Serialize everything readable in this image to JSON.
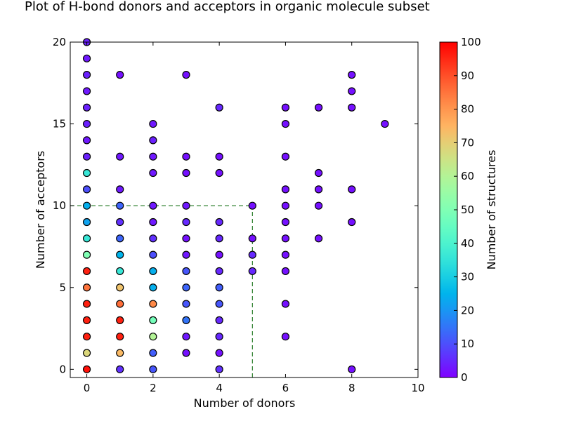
{
  "chart_data": {
    "type": "scatter",
    "title": "Plot of H-bond donors and acceptors in organic molecule subset",
    "xlabel": "Number of donors",
    "ylabel": "Number of acceptors",
    "xlim": [
      -0.5,
      10
    ],
    "ylim": [
      -0.5,
      20
    ],
    "xticks": [
      0,
      2,
      4,
      6,
      8,
      10
    ],
    "yticks": [
      0,
      5,
      10,
      15,
      20
    ],
    "colorbar": {
      "label": "Number of structures",
      "range": [
        0,
        100
      ],
      "ticks": [
        0,
        10,
        20,
        30,
        40,
        50,
        60,
        70,
        80,
        90,
        100
      ],
      "colormap": "rainbow"
    },
    "guide_lines": {
      "donors": 5,
      "acceptors": 10,
      "color": "#006400"
    },
    "points": [
      [
        0,
        0,
        98
      ],
      [
        0,
        1,
        68
      ],
      [
        0,
        2,
        96
      ],
      [
        0,
        3,
        96
      ],
      [
        0,
        4,
        96
      ],
      [
        0,
        5,
        85
      ],
      [
        0,
        6,
        96
      ],
      [
        0,
        7,
        50
      ],
      [
        0,
        8,
        36
      ],
      [
        0,
        9,
        22
      ],
      [
        0,
        10,
        24
      ],
      [
        0,
        11,
        10
      ],
      [
        0,
        12,
        36
      ],
      [
        0,
        13,
        4
      ],
      [
        0,
        14,
        3
      ],
      [
        0,
        15,
        4
      ],
      [
        0,
        16,
        4
      ],
      [
        0,
        17,
        3
      ],
      [
        0,
        18,
        4
      ],
      [
        0,
        19,
        3
      ],
      [
        0,
        20,
        4
      ],
      [
        1,
        0,
        6
      ],
      [
        1,
        1,
        74
      ],
      [
        1,
        2,
        96
      ],
      [
        1,
        3,
        96
      ],
      [
        1,
        4,
        86
      ],
      [
        1,
        5,
        72
      ],
      [
        1,
        6,
        36
      ],
      [
        1,
        7,
        25
      ],
      [
        1,
        8,
        13
      ],
      [
        1,
        9,
        6
      ],
      [
        1,
        10,
        13
      ],
      [
        1,
        11,
        3
      ],
      [
        1,
        13,
        3
      ],
      [
        1,
        18,
        2
      ],
      [
        2,
        0,
        11
      ],
      [
        2,
        1,
        12
      ],
      [
        2,
        2,
        60
      ],
      [
        2,
        3,
        48
      ],
      [
        2,
        4,
        82
      ],
      [
        2,
        5,
        24
      ],
      [
        2,
        6,
        24
      ],
      [
        2,
        7,
        10
      ],
      [
        2,
        8,
        6
      ],
      [
        2,
        9,
        3
      ],
      [
        2,
        10,
        3
      ],
      [
        2,
        12,
        3
      ],
      [
        2,
        13,
        3
      ],
      [
        2,
        14,
        4
      ],
      [
        2,
        15,
        3
      ],
      [
        3,
        1,
        2
      ],
      [
        3,
        2,
        3
      ],
      [
        3,
        3,
        15
      ],
      [
        3,
        4,
        11
      ],
      [
        3,
        5,
        13
      ],
      [
        3,
        6,
        11
      ],
      [
        3,
        7,
        3
      ],
      [
        3,
        8,
        2
      ],
      [
        3,
        9,
        5
      ],
      [
        3,
        10,
        3
      ],
      [
        3,
        12,
        2
      ],
      [
        3,
        13,
        2
      ],
      [
        3,
        18,
        2
      ],
      [
        4,
        0,
        6
      ],
      [
        4,
        1,
        2
      ],
      [
        4,
        2,
        5
      ],
      [
        4,
        3,
        5
      ],
      [
        4,
        4,
        11
      ],
      [
        4,
        5,
        12
      ],
      [
        4,
        6,
        5
      ],
      [
        4,
        7,
        2
      ],
      [
        4,
        8,
        5
      ],
      [
        4,
        9,
        5
      ],
      [
        4,
        12,
        2
      ],
      [
        4,
        13,
        2
      ],
      [
        4,
        16,
        5
      ],
      [
        5,
        6,
        5
      ],
      [
        5,
        7,
        5
      ],
      [
        5,
        8,
        2
      ],
      [
        5,
        10,
        2
      ],
      [
        6,
        2,
        2
      ],
      [
        6,
        4,
        2
      ],
      [
        6,
        6,
        2
      ],
      [
        6,
        7,
        2
      ],
      [
        6,
        8,
        2
      ],
      [
        6,
        9,
        2
      ],
      [
        6,
        10,
        2
      ],
      [
        6,
        11,
        2
      ],
      [
        6,
        13,
        2
      ],
      [
        6,
        15,
        2
      ],
      [
        6,
        16,
        2
      ],
      [
        7,
        8,
        2
      ],
      [
        7,
        10,
        2
      ],
      [
        7,
        11,
        2
      ],
      [
        7,
        12,
        2
      ],
      [
        7,
        16,
        2
      ],
      [
        8,
        0,
        2
      ],
      [
        8,
        9,
        2
      ],
      [
        8,
        11,
        2
      ],
      [
        8,
        16,
        2
      ],
      [
        8,
        17,
        2
      ],
      [
        8,
        18,
        2
      ],
      [
        9,
        15,
        2
      ]
    ]
  }
}
